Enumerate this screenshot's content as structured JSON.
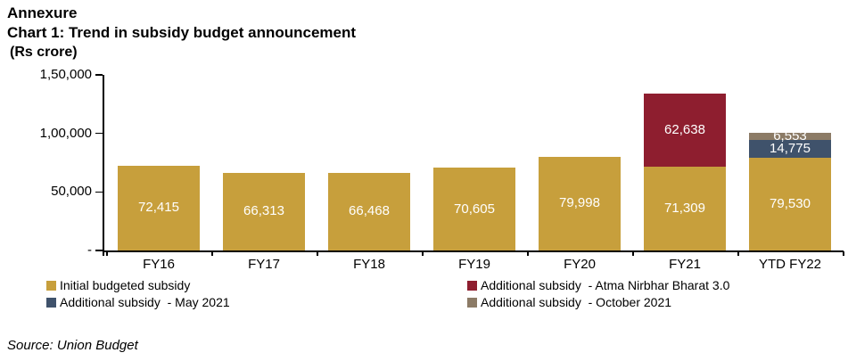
{
  "header": {
    "annexure": "Annexure",
    "title": "Chart 1: Trend in subsidy budget announcement",
    "unit_label": "(Rs crore)"
  },
  "chart_data": {
    "type": "bar",
    "stacked": true,
    "title": "Chart 1: Trend in subsidy budget announcement",
    "unit": "Rs crore",
    "categories": [
      "FY16",
      "FY17",
      "FY18",
      "FY19",
      "FY20",
      "FY21",
      "YTD FY22"
    ],
    "series": [
      {
        "name": "Initial budgeted subsidy",
        "color": "#C79F3C",
        "values": [
          72415,
          66313,
          66468,
          70605,
          79998,
          71309,
          79530
        ]
      },
      {
        "name": "Additional subsidy  - Atma Nirbhar Bharat 3.0",
        "color": "#8E1E2F",
        "values": [
          null,
          null,
          null,
          null,
          null,
          62638,
          null
        ]
      },
      {
        "name": "Additional subsidy  - May 2021",
        "color": "#3F526B",
        "values": [
          null,
          null,
          null,
          null,
          null,
          null,
          14775
        ]
      },
      {
        "name": "Additional subsidy  - October 2021",
        "color": "#8C7B66",
        "values": [
          null,
          null,
          null,
          null,
          null,
          null,
          6553
        ]
      }
    ],
    "y_axis": {
      "tick_labels": [
        "1,50,000",
        "1,00,000",
        "50,000",
        "-"
      ],
      "tick_values": [
        150000,
        100000,
        50000,
        0
      ],
      "ylim": [
        0,
        150000
      ]
    },
    "grid": false,
    "legend_position": "bottom",
    "bar_label_color": "#FFFFFF",
    "axis_color": "#000000"
  },
  "source": "Source: Union Budget"
}
